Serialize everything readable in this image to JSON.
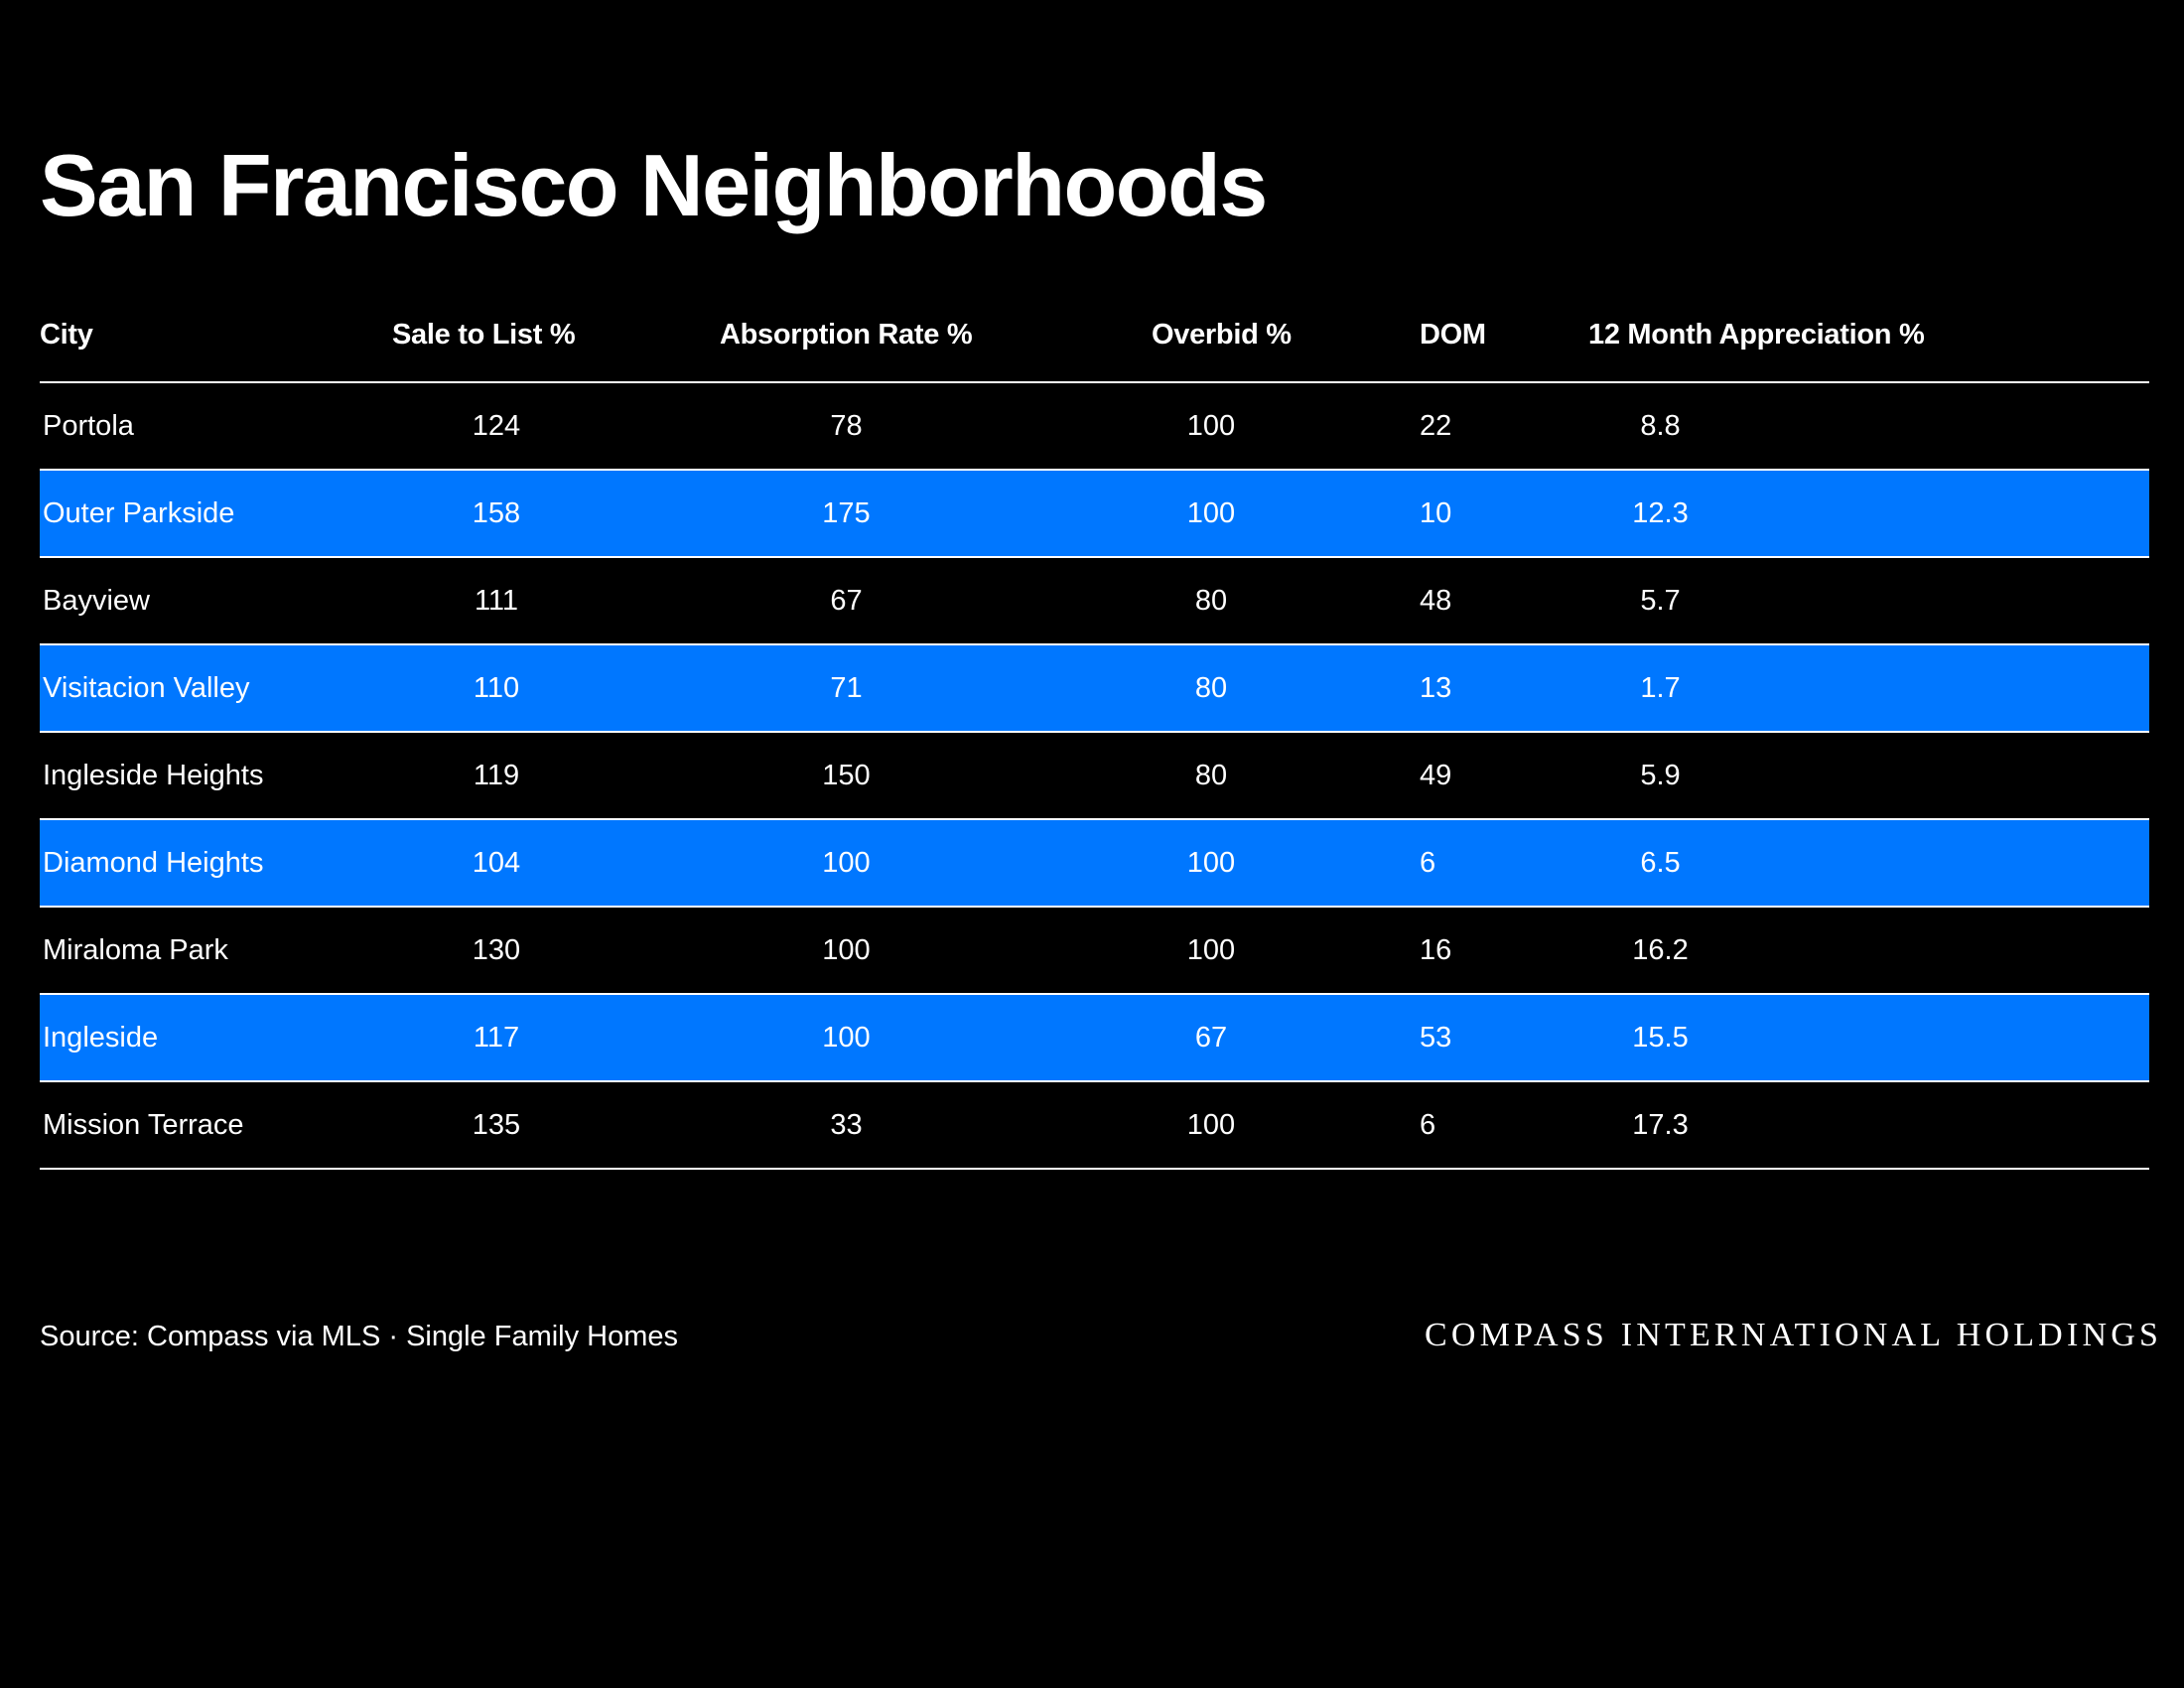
{
  "title": "San Francisco Neighborhoods",
  "table": {
    "headers": [
      "City",
      "Sale to List %",
      "Absorption Rate %",
      "Overbid %",
      "DOM",
      "12 Month Appreciation %"
    ],
    "rows": [
      {
        "city": "Portola",
        "sale_to_list": "124",
        "absorption_rate": "78",
        "overbid": "100",
        "dom": "22",
        "appreciation": "8.8",
        "highlighted": false
      },
      {
        "city": "Outer Parkside",
        "sale_to_list": "158",
        "absorption_rate": "175",
        "overbid": "100",
        "dom": "10",
        "appreciation": "12.3",
        "highlighted": true
      },
      {
        "city": "Bayview",
        "sale_to_list": "111",
        "absorption_rate": "67",
        "overbid": "80",
        "dom": "48",
        "appreciation": "5.7",
        "highlighted": false
      },
      {
        "city": "Visitacion Valley",
        "sale_to_list": "110",
        "absorption_rate": "71",
        "overbid": "80",
        "dom": "13",
        "appreciation": "1.7",
        "highlighted": true
      },
      {
        "city": "Ingleside Heights",
        "sale_to_list": "119",
        "absorption_rate": "150",
        "overbid": "80",
        "dom": "49",
        "appreciation": "5.9",
        "highlighted": false
      },
      {
        "city": "Diamond Heights",
        "sale_to_list": "104",
        "absorption_rate": "100",
        "overbid": "100",
        "dom": "6",
        "appreciation": "6.5",
        "highlighted": true
      },
      {
        "city": "Miraloma Park",
        "sale_to_list": "130",
        "absorption_rate": "100",
        "overbid": "100",
        "dom": "16",
        "appreciation": "16.2",
        "highlighted": false
      },
      {
        "city": "Ingleside",
        "sale_to_list": "117",
        "absorption_rate": "100",
        "overbid": "67",
        "dom": "53",
        "appreciation": "15.5",
        "highlighted": true
      },
      {
        "city": "Mission Terrace",
        "sale_to_list": "135",
        "absorption_rate": "33",
        "overbid": "100",
        "dom": "6",
        "appreciation": "17.3",
        "highlighted": false
      }
    ]
  },
  "footer": {
    "source": "Source: Compass via MLS · Single Family Homes",
    "brand": "COMPASS INTERNATIONAL HOLDINGS"
  },
  "colors": {
    "background": "#000000",
    "text": "#ffffff",
    "highlight_row": "#0077ff"
  }
}
